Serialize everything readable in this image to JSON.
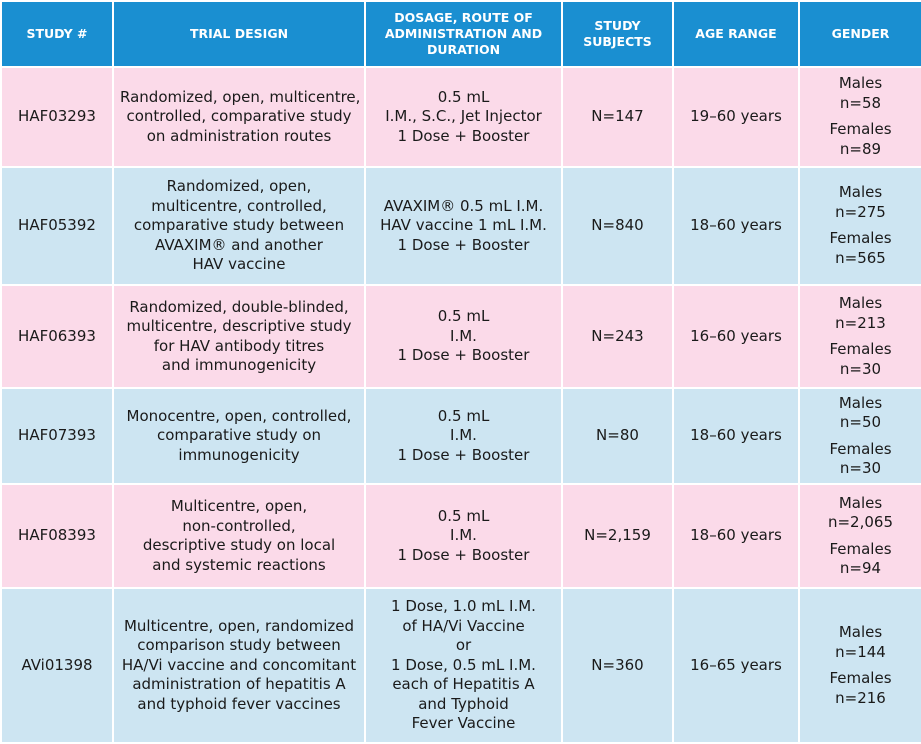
{
  "headers": {
    "study": "STUDY #",
    "design": "TRIAL DESIGN",
    "dosage": [
      "DOSAGE, ROUTE OF",
      "ADMINISTRATION AND",
      "DURATION"
    ],
    "subjects": [
      "STUDY",
      "SUBJECTS"
    ],
    "age": "AGE RANGE",
    "gender": "GENDER"
  },
  "rows": [
    {
      "study": "HAF03293",
      "design": [
        "Randomized, open, multicentre,",
        "controlled, comparative study",
        "on administration routes"
      ],
      "dosage": [
        "0.5 mL",
        "I.M., S.C., Jet Injector",
        "1 Dose + Booster"
      ],
      "subjects": "N=147",
      "age": "19–60 years",
      "males_label": "Males",
      "males": "n=58",
      "females_label": "Females",
      "females": "n=89"
    },
    {
      "study": "HAF05392",
      "design": [
        "Randomized, open,",
        "multicentre, controlled,",
        "comparative study between",
        "AVAXIM® and another",
        "HAV vaccine"
      ],
      "dosage": [
        "AVAXIM® 0.5 mL I.M.",
        "HAV vaccine 1 mL I.M.",
        "1 Dose + Booster"
      ],
      "subjects": "N=840",
      "age": "18–60 years",
      "males_label": "Males",
      "males": "n=275",
      "females_label": "Females",
      "females": "n=565"
    },
    {
      "study": "HAF06393",
      "design": [
        "Randomized, double-blinded,",
        "multicentre, descriptive study",
        "for HAV antibody titres",
        "and immunogenicity"
      ],
      "dosage": [
        "0.5 mL",
        "I.M.",
        "1 Dose + Booster"
      ],
      "subjects": "N=243",
      "age": "16–60 years",
      "males_label": "Males",
      "males": "n=213",
      "females_label": "Females",
      "females": "n=30"
    },
    {
      "study": "HAF07393",
      "design": [
        "Monocentre, open, controlled,",
        "comparative study on",
        "immunogenicity"
      ],
      "dosage": [
        "0.5 mL",
        "I.M.",
        "1 Dose + Booster"
      ],
      "subjects": "N=80",
      "age": "18–60 years",
      "males_label": "Males",
      "males": "n=50",
      "females_label": "Females",
      "females": "n=30"
    },
    {
      "study": "HAF08393",
      "design": [
        "Multicentre, open,",
        "non-controlled,",
        "descriptive study on local",
        "and systemic reactions"
      ],
      "dosage": [
        "0.5 mL",
        "I.M.",
        "1 Dose + Booster"
      ],
      "subjects": "N=2,159",
      "age": "18–60 years",
      "males_label": "Males",
      "males": "n=2,065",
      "females_label": "Females",
      "females": "n=94"
    },
    {
      "study": "AVi01398",
      "design": [
        "Multicentre, open, randomized",
        "comparison study between",
        "HA/Vi vaccine and concomitant",
        "administration of hepatitis A",
        "and typhoid fever vaccines"
      ],
      "dosage": [
        "1 Dose, 1.0 mL I.M.",
        "of HA/Vi Vaccine",
        "or",
        "1 Dose, 0.5 mL I.M.",
        "each of Hepatitis A",
        "and Typhoid",
        "Fever Vaccine"
      ],
      "subjects": "N=360",
      "age": "16–65 years",
      "males_label": "Males",
      "males": "n=144",
      "females_label": "Females",
      "females": "n=216"
    }
  ]
}
